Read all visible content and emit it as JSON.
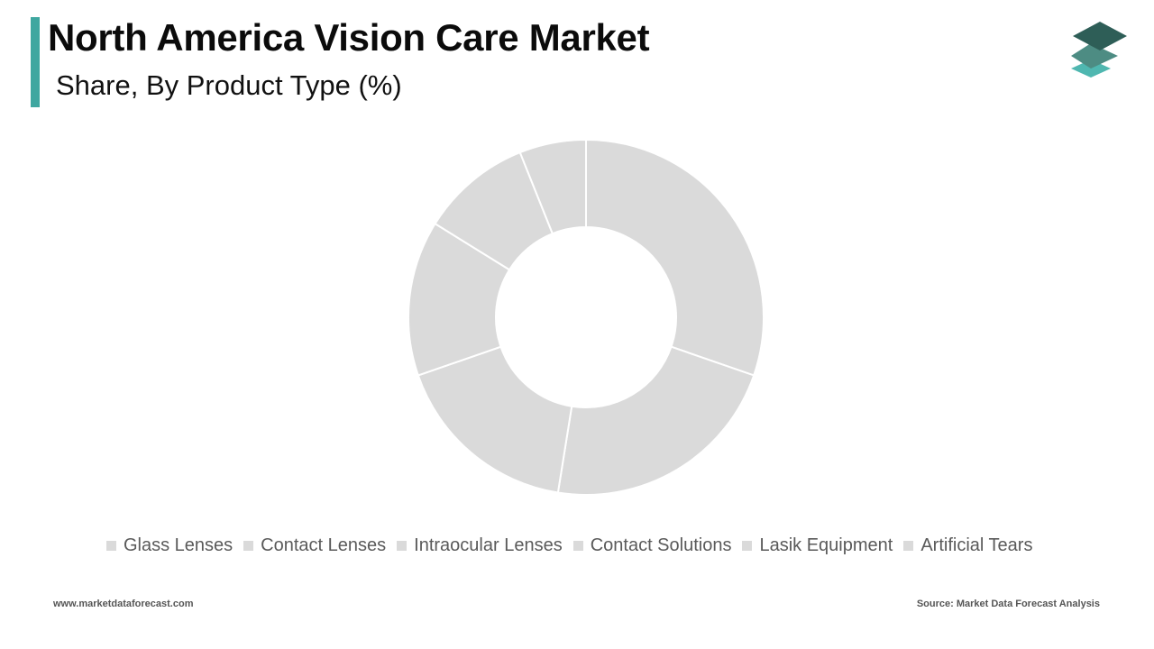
{
  "header": {
    "title": "North America Vision Care Market",
    "subtitle": "Share, By Product Type (%)"
  },
  "colors": {
    "accent": "#3fa7a0",
    "slice": "#dadada",
    "slice_border": "#ffffff",
    "logo_dark": "#2e5e57",
    "logo_mid": "#4d8c83",
    "logo_light": "#4fb7b0"
  },
  "logo": {
    "icon": "stacked-layers-icon"
  },
  "chart_data": {
    "type": "pie",
    "donut": true,
    "categories": [
      "Glass Lenses",
      "Contact Lenses",
      "Intraocular Lenses",
      "Contact Solutions",
      "Lasik Equipment",
      "Artificial Tears"
    ],
    "values": [
      30,
      22,
      17,
      14,
      10,
      6
    ],
    "unit": "%",
    "title": "North America Vision Care Market",
    "subtitle": "Share, By Product Type (%)",
    "legend": "bottom",
    "data_labels": false
  },
  "footer": {
    "website": "www.marketdataforecast.com",
    "source": "Source: Market Data Forecast Analysis"
  }
}
